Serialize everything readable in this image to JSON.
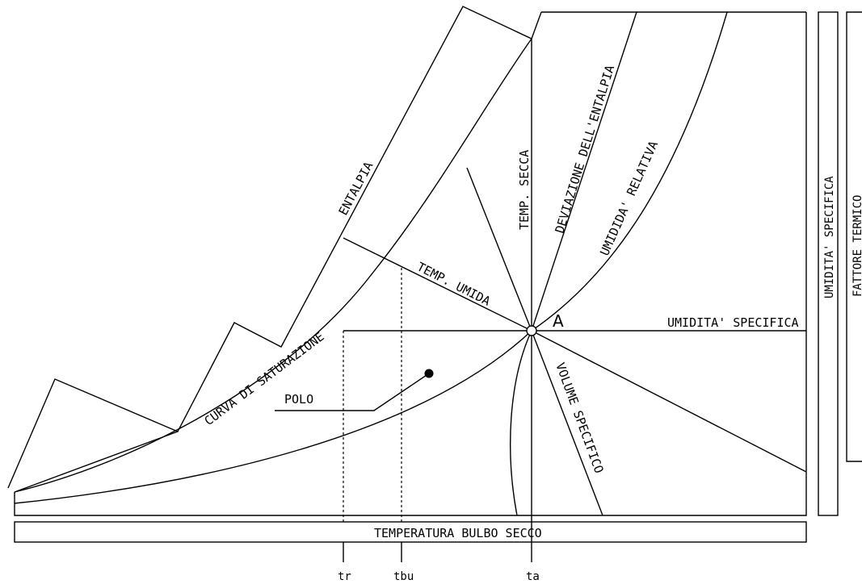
{
  "labels": {
    "entalpia": "ENTALPIA",
    "curva_saturazione": "CURVA DI SATURAZIONE",
    "temp_secca": "TEMP. SECCA",
    "deviazione_entalpia": "DEVIAZIONE DELL'ENTALPIA",
    "umidita_relativa": "UMIDIDA' RELATIVA",
    "temp_umida": "TEMP. UMIDA",
    "point_a": "A",
    "umidita_specifica": "UMIDITA' SPECIFICA",
    "volume_specifico": "VOLUME SPECIFICO",
    "polo": "POLO",
    "temperatura_bulbo_secco": "TEMPERATURA BULBO SECCO",
    "umidita_specifica_side": "UMIDITA' SPECIFICA",
    "fattore_termico": "FATTORE TERMICO",
    "tick_tr": "tr",
    "tick_tbu": "tbu",
    "tick_ta": "ta"
  },
  "colors": {
    "line": "#000000",
    "background": "#ffffff"
  }
}
